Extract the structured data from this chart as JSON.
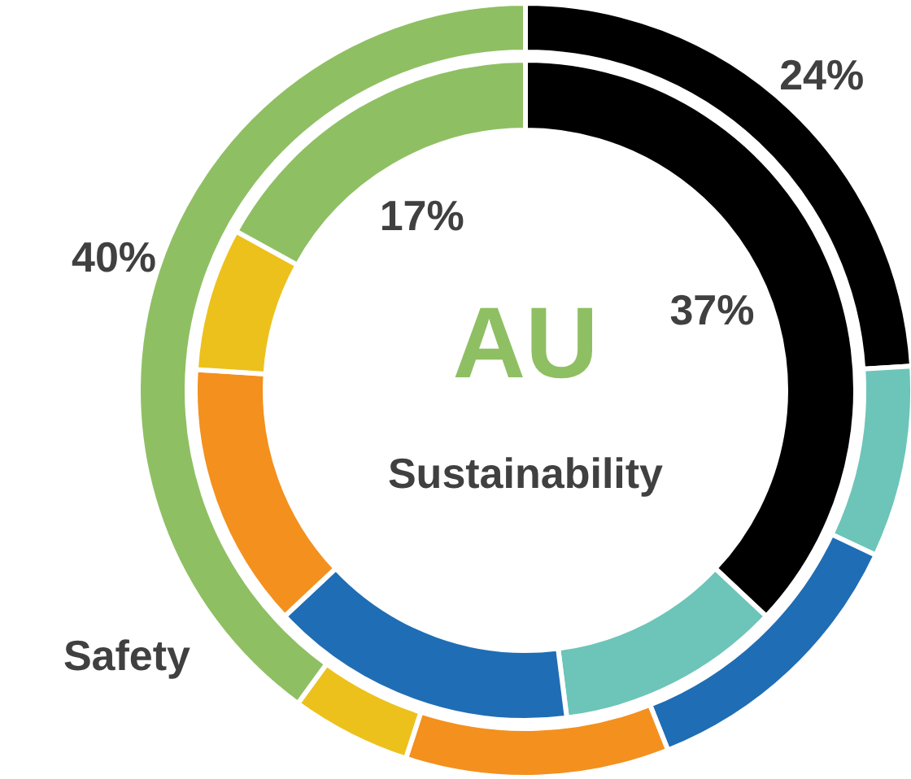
{
  "chart_data": {
    "type": "donut",
    "title": "AU",
    "subtitle": "Sustainability",
    "categories": [
      null,
      null,
      null,
      null,
      null,
      null
    ],
    "series": [
      {
        "values": [
          24,
          8,
          12,
          11,
          5,
          40
        ],
        "value_labels": [
          "24%",
          null,
          null,
          null,
          null,
          "40%"
        ],
        "colors": [
          "#000000",
          "#6cc5b8",
          "#1f6db5",
          "#f4901e",
          "#edc11c",
          "#8fbf63"
        ]
      },
      {
        "values": [
          37,
          11,
          15,
          13,
          7,
          17
        ],
        "value_labels": [
          "37%",
          null,
          null,
          null,
          null,
          "17%"
        ],
        "colors": [
          "#000000",
          "#6cc5b8",
          "#1f6db5",
          "#f4901e",
          "#edc11c",
          "#8fbf63"
        ]
      }
    ],
    "annotations": [
      "Safety"
    ]
  }
}
